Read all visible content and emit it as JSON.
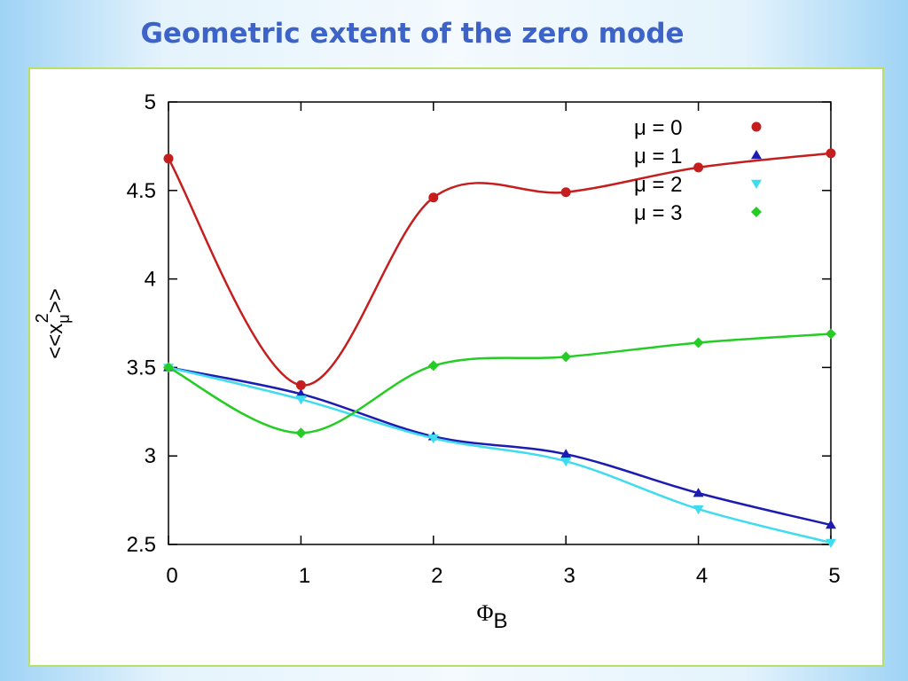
{
  "slide_title": "Geometric extent of the zero mode",
  "chart_data": {
    "type": "line",
    "x_label_parts": [
      "Φ",
      "B"
    ],
    "y_label_parts": [
      "<<x",
      "μ",
      "2",
      ">>"
    ],
    "x": [
      0,
      1,
      2,
      3,
      4,
      5
    ],
    "xlim": [
      0,
      5
    ],
    "xticks": [
      0,
      1,
      2,
      3,
      4,
      5
    ],
    "ylim": [
      2.5,
      5
    ],
    "yticks": [
      2.5,
      3,
      3.5,
      4,
      4.5,
      5
    ],
    "legend": "upper right",
    "series": [
      {
        "name": "μ = 0",
        "color": "#c41e1e",
        "marker": "circle",
        "values": [
          4.68,
          3.4,
          4.46,
          4.49,
          4.63,
          4.71
        ]
      },
      {
        "name": "μ = 1",
        "color": "#1c1cb0",
        "marker": "triangle",
        "values": [
          3.5,
          3.35,
          3.11,
          3.01,
          2.79,
          2.61
        ]
      },
      {
        "name": "μ = 2",
        "color": "#3fdcf0",
        "marker": "triangle-down",
        "values": [
          3.5,
          3.32,
          3.1,
          2.97,
          2.7,
          2.51
        ]
      },
      {
        "name": "μ = 3",
        "color": "#24cc24",
        "marker": "diamond",
        "values": [
          3.5,
          3.13,
          3.51,
          3.56,
          3.64,
          3.69
        ]
      }
    ]
  }
}
